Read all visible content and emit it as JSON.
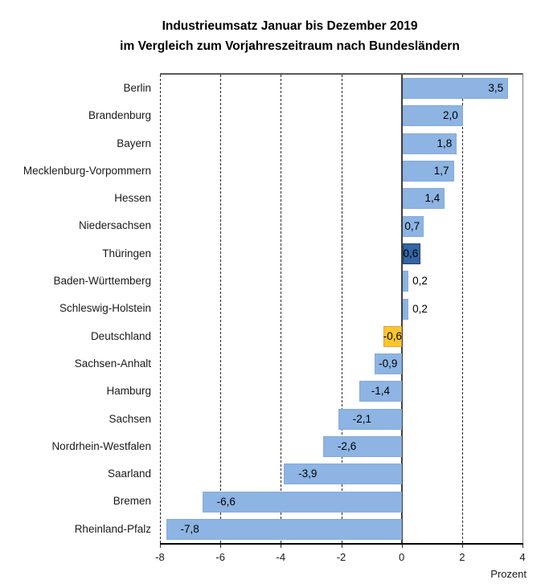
{
  "title": {
    "line1": "Industrieumsatz Januar bis Dezember 2019",
    "line2": "im Vergleich zum Vorjahreszeitraum nach Bundesländern"
  },
  "axis": {
    "unit_label": "Prozent"
  },
  "chart_data": {
    "type": "bar",
    "orientation": "horizontal",
    "title": "Industrieumsatz Januar bis Dezember 2019 im Vergleich zum Vorjahreszeitraum nach Bundesländern",
    "xlabel": "Prozent",
    "xlim": [
      -8,
      4
    ],
    "x_ticks": [
      -8,
      -6,
      -4,
      -2,
      0,
      2,
      4
    ],
    "x_tick_labels": [
      "-8",
      "-6",
      "-4",
      "-2",
      "0",
      "2",
      "4"
    ],
    "grid": "vertical dashed gridlines at even values, solid line at 0",
    "legend": "none",
    "bars": [
      {
        "category": "Berlin",
        "value": 3.5,
        "label": "3,5",
        "color_key": "default"
      },
      {
        "category": "Brandenburg",
        "value": 2.0,
        "label": "2,0",
        "color_key": "default"
      },
      {
        "category": "Bayern",
        "value": 1.8,
        "label": "1,8",
        "color_key": "default"
      },
      {
        "category": "Mecklenburg-Vorpommern",
        "value": 1.7,
        "label": "1,7",
        "color_key": "default"
      },
      {
        "category": "Hessen",
        "value": 1.4,
        "label": "1,4",
        "color_key": "default"
      },
      {
        "category": "Niedersachsen",
        "value": 0.7,
        "label": "0,7",
        "color_key": "default"
      },
      {
        "category": "Thüringen",
        "value": 0.6,
        "label": "0,6",
        "color_key": "highlight_state"
      },
      {
        "category": "Baden-Württemberg",
        "value": 0.2,
        "label": "0,2",
        "color_key": "default"
      },
      {
        "category": "Schleswig-Holstein",
        "value": 0.2,
        "label": "0,2",
        "color_key": "default"
      },
      {
        "category": "Deutschland",
        "value": -0.6,
        "label": "-0,6",
        "color_key": "highlight_germany"
      },
      {
        "category": "Sachsen-Anhalt",
        "value": -0.9,
        "label": "-0,9",
        "color_key": "default"
      },
      {
        "category": "Hamburg",
        "value": -1.4,
        "label": "-1,4",
        "color_key": "default"
      },
      {
        "category": "Sachsen",
        "value": -2.1,
        "label": "-2,1",
        "color_key": "default"
      },
      {
        "category": "Nordrhein-Westfalen",
        "value": -2.6,
        "label": "-2,6",
        "color_key": "default"
      },
      {
        "category": "Saarland",
        "value": -3.9,
        "label": "-3,9",
        "color_key": "default"
      },
      {
        "category": "Bremen",
        "value": -6.6,
        "label": "-6,6",
        "color_key": "default"
      },
      {
        "category": "Rheinland-Pfalz",
        "value": -7.8,
        "label": "-7,8",
        "color_key": "default"
      }
    ],
    "colors": {
      "default": "#8DB4E2",
      "default_border": "#86ABDC",
      "highlight_state": "#3465A4",
      "highlight_state_border": "#1F3F6E",
      "highlight_germany": "#FFC62E",
      "highlight_germany_border": "#DFA13D",
      "zero_line": "#404040",
      "gridline": "#2B2B2B",
      "axis_line": "#000000",
      "plot_border": "#808080"
    }
  }
}
